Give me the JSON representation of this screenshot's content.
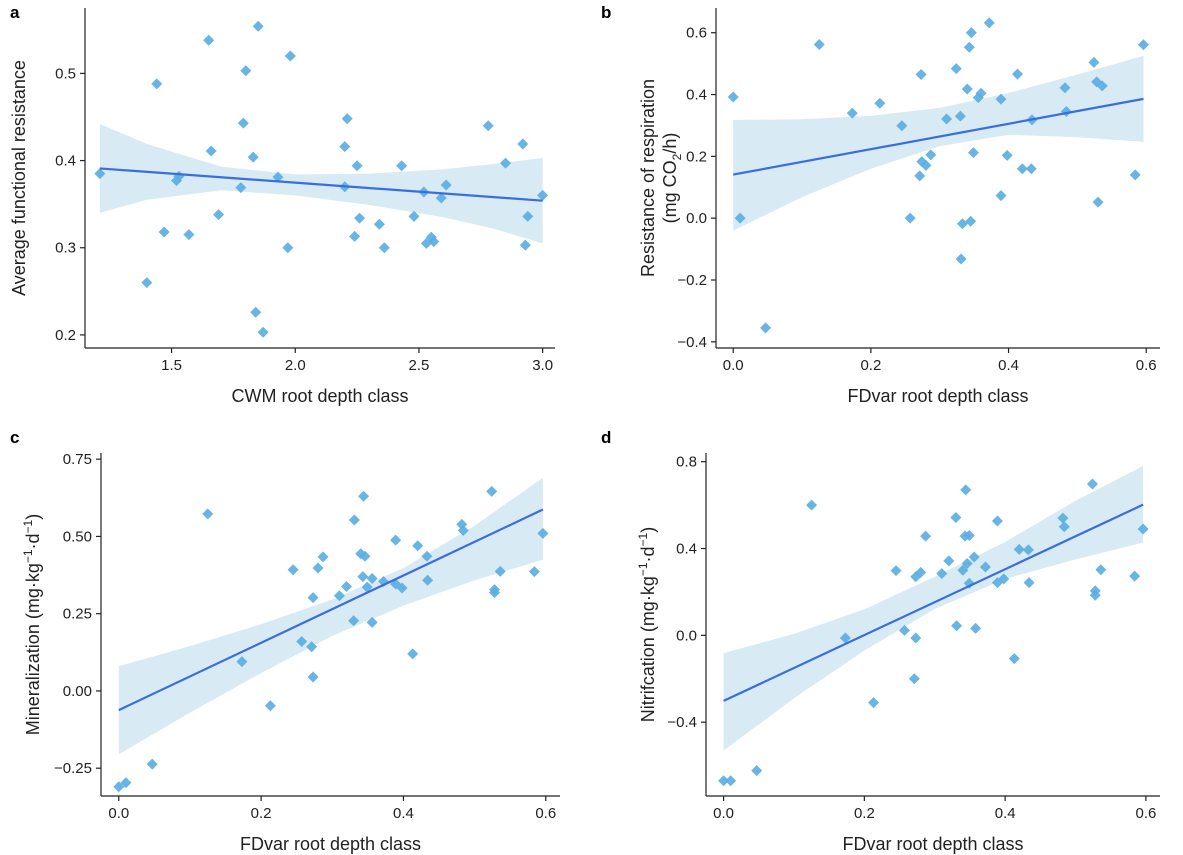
{
  "colors": {
    "point": "#5aaee3",
    "line": "#3a6de0",
    "band": "#d8eaf3",
    "axis": "#222222"
  },
  "chart_data": [
    {
      "type": "scatter",
      "panel_label": "a",
      "xlabel": "CWM root depth class",
      "ylabel": "Average functional resistance",
      "xlim": [
        1.15,
        3.05
      ],
      "ylim": [
        0.185,
        0.575
      ],
      "xticks": [
        1.5,
        2.0,
        2.5,
        3.0
      ],
      "xtick_labels": [
        "1.5",
        "2.0",
        "2.5",
        "3.0"
      ],
      "yticks": [
        0.2,
        0.3,
        0.4,
        0.5
      ],
      "ytick_labels": [
        "0.2",
        "0.3",
        "0.4",
        "0.5"
      ],
      "points": [
        [
          1.21,
          0.385
        ],
        [
          1.4,
          0.26
        ],
        [
          1.44,
          0.488
        ],
        [
          1.47,
          0.318
        ],
        [
          1.52,
          0.377
        ],
        [
          1.53,
          0.382
        ],
        [
          1.57,
          0.315
        ],
        [
          1.65,
          0.538
        ],
        [
          1.66,
          0.411
        ],
        [
          1.69,
          0.338
        ],
        [
          1.78,
          0.369
        ],
        [
          1.79,
          0.443
        ],
        [
          1.8,
          0.503
        ],
        [
          1.83,
          0.404
        ],
        [
          1.84,
          0.226
        ],
        [
          1.85,
          0.554
        ],
        [
          1.87,
          0.203
        ],
        [
          1.93,
          0.381
        ],
        [
          1.97,
          0.3
        ],
        [
          1.98,
          0.52
        ],
        [
          2.2,
          0.37
        ],
        [
          2.2,
          0.416
        ],
        [
          2.21,
          0.448
        ],
        [
          2.24,
          0.313
        ],
        [
          2.25,
          0.394
        ],
        [
          2.26,
          0.334
        ],
        [
          2.34,
          0.327
        ],
        [
          2.36,
          0.3
        ],
        [
          2.43,
          0.394
        ],
        [
          2.48,
          0.336
        ],
        [
          2.52,
          0.364
        ],
        [
          2.53,
          0.305
        ],
        [
          2.55,
          0.312
        ],
        [
          2.56,
          0.307
        ],
        [
          2.59,
          0.357
        ],
        [
          2.61,
          0.372
        ],
        [
          2.78,
          0.44
        ],
        [
          2.85,
          0.397
        ],
        [
          2.92,
          0.419
        ],
        [
          2.93,
          0.303
        ],
        [
          2.94,
          0.336
        ],
        [
          3.0,
          0.36
        ]
      ],
      "fit": {
        "x": [
          1.21,
          3.0
        ],
        "y": [
          0.391,
          0.354
        ]
      },
      "ci_band": {
        "x": [
          1.21,
          1.4,
          1.7,
          2.0,
          2.3,
          2.6,
          2.8,
          3.0
        ],
        "lower": [
          0.34,
          0.355,
          0.366,
          0.36,
          0.349,
          0.335,
          0.322,
          0.305
        ],
        "upper": [
          0.442,
          0.419,
          0.393,
          0.384,
          0.385,
          0.39,
          0.396,
          0.403
        ]
      }
    },
    {
      "type": "scatter",
      "panel_label": "b",
      "xlabel": "FDvar root depth class",
      "ylabel": "Resistance of respiration",
      "ylabel_line2": [
        "(mg CO",
        "2",
        "/h)"
      ],
      "xlim": [
        -0.025,
        0.62
      ],
      "ylim": [
        -0.42,
        0.68
      ],
      "xticks": [
        0.0,
        0.2,
        0.4,
        0.6
      ],
      "xtick_labels": [
        "0.0",
        "0.2",
        "0.4",
        "0.6"
      ],
      "yticks": [
        -0.4,
        -0.2,
        0.0,
        0.2,
        0.4,
        0.6
      ],
      "ytick_labels": [
        "−0.4",
        "−0.2",
        "0.0",
        "0.2",
        "0.4",
        "0.6"
      ],
      "points": [
        [
          0.0,
          0.392
        ],
        [
          0.01,
          0.0
        ],
        [
          0.047,
          -0.355
        ],
        [
          0.125,
          0.562
        ],
        [
          0.173,
          0.34
        ],
        [
          0.213,
          0.372
        ],
        [
          0.245,
          0.299
        ],
        [
          0.257,
          0.0
        ],
        [
          0.271,
          0.137
        ],
        [
          0.273,
          0.465
        ],
        [
          0.274,
          0.183
        ],
        [
          0.28,
          0.171
        ],
        [
          0.287,
          0.205
        ],
        [
          0.31,
          0.321
        ],
        [
          0.324,
          0.484
        ],
        [
          0.33,
          0.33
        ],
        [
          0.331,
          -0.132
        ],
        [
          0.333,
          -0.018
        ],
        [
          0.34,
          0.418
        ],
        [
          0.343,
          0.553
        ],
        [
          0.345,
          -0.01
        ],
        [
          0.346,
          0.6
        ],
        [
          0.349,
          0.212
        ],
        [
          0.356,
          0.39
        ],
        [
          0.36,
          0.404
        ],
        [
          0.372,
          0.632
        ],
        [
          0.389,
          0.385
        ],
        [
          0.389,
          0.073
        ],
        [
          0.398,
          0.203
        ],
        [
          0.413,
          0.466
        ],
        [
          0.42,
          0.16
        ],
        [
          0.433,
          0.16
        ],
        [
          0.434,
          0.318
        ],
        [
          0.482,
          0.422
        ],
        [
          0.484,
          0.345
        ],
        [
          0.524,
          0.504
        ],
        [
          0.528,
          0.441
        ],
        [
          0.53,
          0.052
        ],
        [
          0.536,
          0.428
        ],
        [
          0.584,
          0.14
        ],
        [
          0.596,
          0.561
        ]
      ],
      "fit": {
        "x": [
          0.0,
          0.596
        ],
        "y": [
          0.141,
          0.386
        ]
      },
      "ci_band": {
        "x": [
          0.0,
          0.1,
          0.2,
          0.3,
          0.4,
          0.5,
          0.596
        ],
        "lower": [
          -0.04,
          0.068,
          0.16,
          0.233,
          0.27,
          0.262,
          0.247
        ],
        "upper": [
          0.318,
          0.32,
          0.331,
          0.357,
          0.405,
          0.465,
          0.525
        ]
      }
    },
    {
      "type": "scatter",
      "panel_label": "c",
      "xlabel": "FDvar root depth class",
      "ylabel_parts": [
        "Mineralization (mg·kg",
        "−1",
        "·d",
        "−1",
        ")"
      ],
      "xlim": [
        -0.025,
        0.62
      ],
      "ylim": [
        -0.34,
        0.77
      ],
      "xticks": [
        0.0,
        0.2,
        0.4,
        0.6
      ],
      "xtick_labels": [
        "0.0",
        "0.2",
        "0.4",
        "0.6"
      ],
      "yticks": [
        -0.25,
        0.0,
        0.25,
        0.5,
        0.75
      ],
      "ytick_labels": [
        "−0.25",
        "0.00",
        "0.25",
        "0.50",
        "0.75"
      ],
      "points": [
        [
          0.0,
          -0.31
        ],
        [
          0.01,
          -0.297
        ],
        [
          0.047,
          -0.237
        ],
        [
          0.125,
          0.573
        ],
        [
          0.173,
          0.095
        ],
        [
          0.213,
          -0.048
        ],
        [
          0.245,
          0.392
        ],
        [
          0.257,
          0.16
        ],
        [
          0.271,
          0.143
        ],
        [
          0.273,
          0.045
        ],
        [
          0.273,
          0.302
        ],
        [
          0.28,
          0.398
        ],
        [
          0.287,
          0.434
        ],
        [
          0.31,
          0.308
        ],
        [
          0.32,
          0.338
        ],
        [
          0.33,
          0.227
        ],
        [
          0.331,
          0.553
        ],
        [
          0.34,
          0.444
        ],
        [
          0.343,
          0.37
        ],
        [
          0.344,
          0.63
        ],
        [
          0.346,
          0.436
        ],
        [
          0.349,
          0.336
        ],
        [
          0.356,
          0.222
        ],
        [
          0.356,
          0.364
        ],
        [
          0.372,
          0.354
        ],
        [
          0.389,
          0.488
        ],
        [
          0.389,
          0.346
        ],
        [
          0.398,
          0.333
        ],
        [
          0.413,
          0.12
        ],
        [
          0.42,
          0.47
        ],
        [
          0.433,
          0.436
        ],
        [
          0.434,
          0.358
        ],
        [
          0.482,
          0.539
        ],
        [
          0.484,
          0.519
        ],
        [
          0.524,
          0.646
        ],
        [
          0.528,
          0.328
        ],
        [
          0.528,
          0.318
        ],
        [
          0.536,
          0.387
        ],
        [
          0.584,
          0.386
        ],
        [
          0.596,
          0.51
        ]
      ],
      "fit": {
        "x": [
          0.0,
          0.596
        ],
        "y": [
          -0.062,
          0.587
        ]
      },
      "ci_band": {
        "x": [
          0.0,
          0.1,
          0.2,
          0.3,
          0.4,
          0.5,
          0.596
        ],
        "lower": [
          -0.205,
          -0.07,
          0.058,
          0.178,
          0.276,
          0.358,
          0.425
        ],
        "upper": [
          0.08,
          0.145,
          0.216,
          0.296,
          0.398,
          0.535,
          0.69
        ]
      }
    },
    {
      "type": "scatter",
      "panel_label": "d",
      "xlabel": "FDvar root depth class",
      "ylabel_parts": [
        "Nitrifcation (mg·kg",
        "−1",
        "·d",
        "−1",
        ")"
      ],
      "xlim": [
        -0.025,
        0.62
      ],
      "ylim": [
        -0.74,
        0.84
      ],
      "xticks": [
        0.0,
        0.2,
        0.4,
        0.6
      ],
      "xtick_labels": [
        "0.0",
        "0.2",
        "0.4",
        "0.6"
      ],
      "yticks": [
        -0.4,
        0.0,
        0.4,
        0.8
      ],
      "ytick_labels": [
        "−0.4",
        "0.0",
        "0.4",
        "0.8"
      ],
      "points": [
        [
          0.0,
          -0.67
        ],
        [
          0.01,
          -0.67
        ],
        [
          0.047,
          -0.623
        ],
        [
          0.125,
          0.6
        ],
        [
          0.173,
          -0.012
        ],
        [
          0.213,
          -0.31
        ],
        [
          0.245,
          0.298
        ],
        [
          0.257,
          0.023
        ],
        [
          0.271,
          -0.2
        ],
        [
          0.273,
          -0.012
        ],
        [
          0.273,
          0.27
        ],
        [
          0.28,
          0.29
        ],
        [
          0.287,
          0.457
        ],
        [
          0.31,
          0.285
        ],
        [
          0.32,
          0.343
        ],
        [
          0.33,
          0.543
        ],
        [
          0.331,
          0.044
        ],
        [
          0.34,
          0.3
        ],
        [
          0.343,
          0.457
        ],
        [
          0.344,
          0.67
        ],
        [
          0.346,
          0.331
        ],
        [
          0.349,
          0.46
        ],
        [
          0.349,
          0.24
        ],
        [
          0.356,
          0.361
        ],
        [
          0.358,
          0.032
        ],
        [
          0.372,
          0.315
        ],
        [
          0.389,
          0.527
        ],
        [
          0.389,
          0.243
        ],
        [
          0.398,
          0.26
        ],
        [
          0.413,
          -0.107
        ],
        [
          0.42,
          0.396
        ],
        [
          0.433,
          0.394
        ],
        [
          0.434,
          0.243
        ],
        [
          0.482,
          0.54
        ],
        [
          0.484,
          0.5
        ],
        [
          0.524,
          0.697
        ],
        [
          0.528,
          0.205
        ],
        [
          0.528,
          0.185
        ],
        [
          0.536,
          0.302
        ],
        [
          0.584,
          0.273
        ],
        [
          0.596,
          0.49
        ]
      ],
      "fit": {
        "x": [
          0.0,
          0.596
        ],
        "y": [
          -0.302,
          0.602
        ]
      },
      "ci_band": {
        "x": [
          0.0,
          0.1,
          0.2,
          0.3,
          0.4,
          0.5,
          0.596
        ],
        "lower": [
          -0.53,
          -0.29,
          -0.07,
          0.122,
          0.26,
          0.35,
          0.428
        ],
        "upper": [
          -0.082,
          0.007,
          0.12,
          0.27,
          0.43,
          0.62,
          0.78
        ]
      }
    }
  ]
}
